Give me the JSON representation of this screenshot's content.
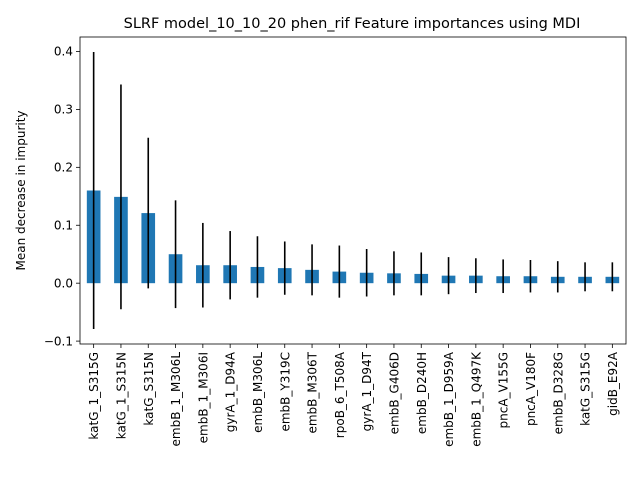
{
  "chart_data": {
    "type": "bar",
    "title": "SLRF model_10_10_20 phen_rif Feature importances using MDI",
    "xlabel": "",
    "ylabel": "Mean decrease in impurity",
    "ylim": [
      -0.105,
      0.425
    ],
    "yticks": [
      -0.1,
      0.0,
      0.1,
      0.2,
      0.3,
      0.4
    ],
    "ytick_labels": [
      "−0.1",
      "0.0",
      "0.1",
      "0.2",
      "0.3",
      "0.4"
    ],
    "grid": false,
    "legend": "none",
    "bar_color": "#1f77b4",
    "errorbar_color": "#000000",
    "categories": [
      "katG_1_S315G",
      "katG_1_S315N",
      "katG_S315N",
      "embB_1_M306L",
      "embB_1_M306I",
      "gyrA_1_D94A",
      "embB_M306L",
      "embB_Y319C",
      "embB_M306T",
      "rpoB_6_T508A",
      "gyrA_1_D94T",
      "embB_G406D",
      "embB_D240H",
      "embB_1_D959A",
      "embB_1_Q497K",
      "pncA_V155G",
      "pncA_V180F",
      "embB_D328G",
      "katG_S315G",
      "gidB_E92A"
    ],
    "values": [
      0.16,
      0.149,
      0.121,
      0.05,
      0.031,
      0.031,
      0.028,
      0.026,
      0.023,
      0.02,
      0.018,
      0.017,
      0.016,
      0.013,
      0.013,
      0.012,
      0.012,
      0.011,
      0.011,
      0.011
    ],
    "errors": [
      0.239,
      0.194,
      0.13,
      0.093,
      0.073,
      0.059,
      0.053,
      0.046,
      0.044,
      0.045,
      0.041,
      0.038,
      0.037,
      0.032,
      0.03,
      0.029,
      0.028,
      0.027,
      0.025,
      0.025
    ]
  }
}
